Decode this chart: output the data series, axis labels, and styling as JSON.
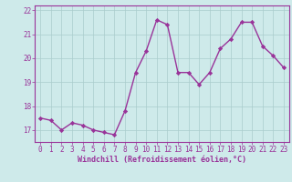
{
  "x": [
    0,
    1,
    2,
    3,
    4,
    5,
    6,
    7,
    8,
    9,
    10,
    11,
    12,
    13,
    14,
    15,
    16,
    17,
    18,
    19,
    20,
    21,
    22,
    23
  ],
  "y": [
    17.5,
    17.4,
    17.0,
    17.3,
    17.2,
    17.0,
    16.9,
    16.8,
    17.8,
    19.4,
    20.3,
    21.6,
    21.4,
    19.4,
    19.4,
    18.9,
    19.4,
    20.4,
    20.8,
    21.5,
    21.5,
    20.5,
    20.1,
    19.6
  ],
  "line_color": "#993399",
  "marker": "D",
  "markersize": 2.2,
  "linewidth": 1.0,
  "xlabel": "Windchill (Refroidissement éolien,°C)",
  "xlabel_fontsize": 6.0,
  "ylim": [
    16.5,
    22.2
  ],
  "xlim": [
    -0.5,
    23.5
  ],
  "yticks": [
    17,
    18,
    19,
    20,
    21,
    22
  ],
  "xticks": [
    0,
    1,
    2,
    3,
    4,
    5,
    6,
    7,
    8,
    9,
    10,
    11,
    12,
    13,
    14,
    15,
    16,
    17,
    18,
    19,
    20,
    21,
    22,
    23
  ],
  "background_color": "#ceeaea",
  "grid_color": "#aacccc",
  "tick_fontsize": 5.5,
  "tick_color": "#993399",
  "spine_color": "#993399"
}
